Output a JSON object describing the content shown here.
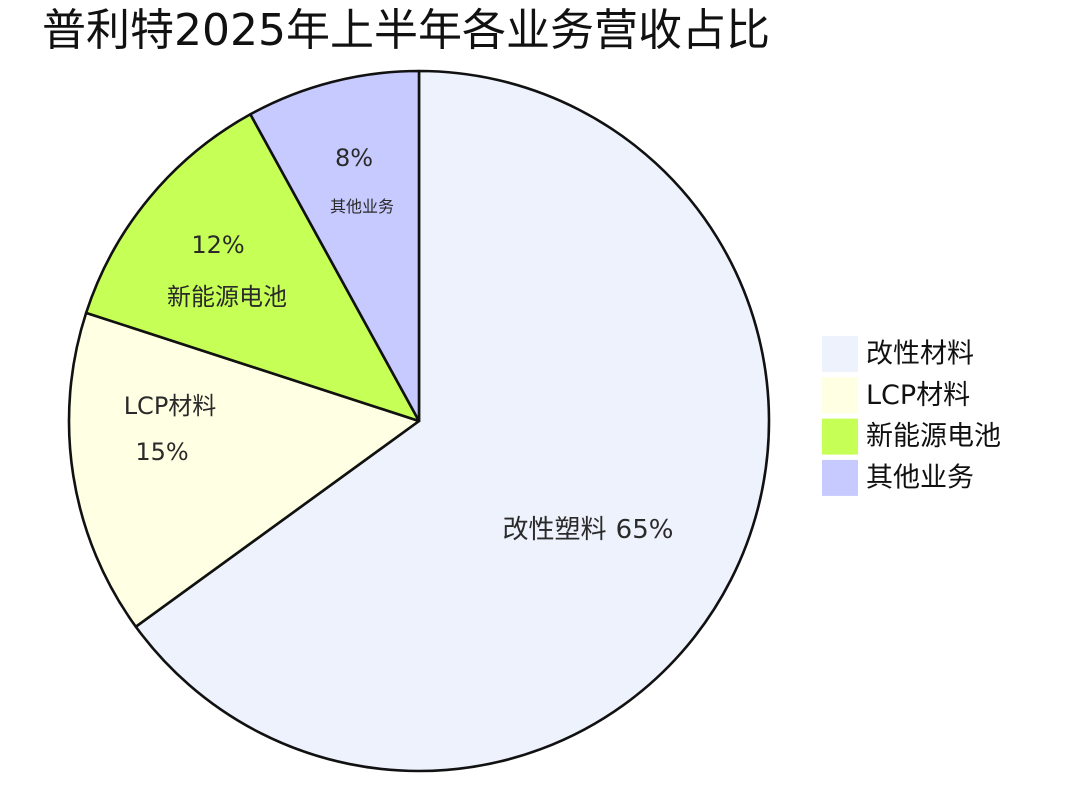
{
  "chart_data": {
    "type": "pie",
    "title": "普利特2025年上半年各业务营收占比",
    "direction": "clockwise",
    "start": "12 o'clock",
    "legend_position": "right",
    "outline_color": "#111111",
    "slices": [
      {
        "legend": "改性材料",
        "inner_label": "改性塑料",
        "value": 65,
        "value_label": "65%",
        "color": "#EEF2FD"
      },
      {
        "legend": "LCP材料",
        "inner_label": "LCP材料",
        "value": 15,
        "value_label": "15%",
        "color": "#FFFFE3"
      },
      {
        "legend": "新能源电池",
        "inner_label": "新能源电池",
        "value": 12,
        "value_label": "12%",
        "color": "#C6FF55"
      },
      {
        "legend": "其他业务",
        "inner_label": "其他业务",
        "value": 8,
        "value_label": "8%",
        "color": "#C7CAFF"
      }
    ]
  }
}
